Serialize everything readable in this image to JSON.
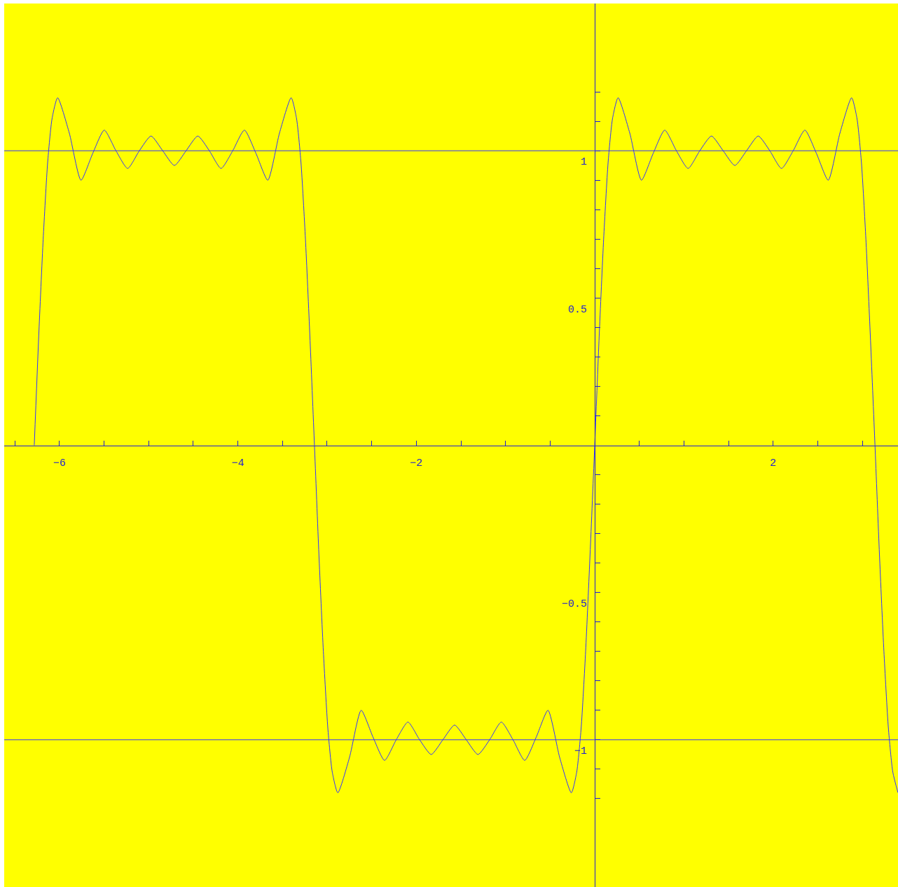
{
  "chart_data": {
    "type": "line",
    "xlim": [
      -6.62,
      3.4
    ],
    "ylim": [
      -1.5,
      1.5
    ],
    "xticks": [
      {
        "value": -6.5,
        "label": null
      },
      {
        "value": -6,
        "label": "−6"
      },
      {
        "value": -5.5,
        "label": null
      },
      {
        "value": -5,
        "label": null
      },
      {
        "value": -4.5,
        "label": null
      },
      {
        "value": -4,
        "label": "−4"
      },
      {
        "value": -3.5,
        "label": null
      },
      {
        "value": -3,
        "label": null
      },
      {
        "value": -2.5,
        "label": null
      },
      {
        "value": -2,
        "label": "−2"
      },
      {
        "value": -1.5,
        "label": null
      },
      {
        "value": -1,
        "label": null
      },
      {
        "value": -0.5,
        "label": null
      },
      {
        "value": 0.5,
        "label": null
      },
      {
        "value": 1,
        "label": null
      },
      {
        "value": 1.5,
        "label": null
      },
      {
        "value": 2,
        "label": "2"
      },
      {
        "value": 2.5,
        "label": null
      },
      {
        "value": 3,
        "label": null
      }
    ],
    "yticks": [
      {
        "value": -1.2,
        "label": null
      },
      {
        "value": -1.1,
        "label": null
      },
      {
        "value": -1,
        "label": "−1"
      },
      {
        "value": -0.9,
        "label": null
      },
      {
        "value": -0.8,
        "label": null
      },
      {
        "value": -0.7,
        "label": null
      },
      {
        "value": -0.6,
        "label": null
      },
      {
        "value": -0.5,
        "label": "−0.5"
      },
      {
        "value": -0.4,
        "label": null
      },
      {
        "value": -0.3,
        "label": null
      },
      {
        "value": -0.2,
        "label": null
      },
      {
        "value": -0.1,
        "label": null
      },
      {
        "value": 0.1,
        "label": null
      },
      {
        "value": 0.2,
        "label": null
      },
      {
        "value": 0.3,
        "label": null
      },
      {
        "value": 0.4,
        "label": null
      },
      {
        "value": 0.5,
        "label": "0.5"
      },
      {
        "value": 0.6,
        "label": null
      },
      {
        "value": 0.7,
        "label": null
      },
      {
        "value": 0.8,
        "label": null
      },
      {
        "value": 0.9,
        "label": null
      },
      {
        "value": 1,
        "label": "1"
      },
      {
        "value": 1.1,
        "label": null
      },
      {
        "value": 1.2,
        "label": null
      }
    ],
    "grid": false,
    "marker": "none",
    "line_style": "solid",
    "ref_lines": [
      {
        "axis": "y",
        "value": 1,
        "color": "#3333ff"
      },
      {
        "axis": "y",
        "value": -1,
        "color": "#3333ff"
      }
    ],
    "series": [
      {
        "color": "#3333ff",
        "x": [
          -6.283,
          -6.233,
          -6.183,
          -6.133,
          -6.083,
          -6.021,
          -5.89,
          -5.759,
          -5.629,
          -5.498,
          -5.367,
          -5.236,
          -5.105,
          -4.974,
          -4.843,
          -4.712,
          -4.581,
          -4.45,
          -4.32,
          -4.189,
          -4.058,
          -3.927,
          -3.796,
          -3.665,
          -3.534,
          -3.403,
          -3.343,
          -3.293,
          -3.243,
          -3.193,
          -3.142,
          -3.092,
          -3.042,
          -2.992,
          -2.942,
          -2.88,
          -2.749,
          -2.618,
          -2.487,
          -2.356,
          -2.225,
          -2.094,
          -1.963,
          -1.833,
          -1.702,
          -1.571,
          -1.44,
          -1.309,
          -1.178,
          -1.047,
          -0.916,
          -0.785,
          -0.654,
          -0.524,
          -0.393,
          -0.262,
          -0.202,
          -0.152,
          -0.102,
          -0.052,
          0,
          0.05,
          0.1,
          0.15,
          0.2,
          0.262,
          0.393,
          0.524,
          0.654,
          0.785,
          0.916,
          1.047,
          1.178,
          1.309,
          1.44,
          1.571,
          1.702,
          1.833,
          1.963,
          2.094,
          2.225,
          2.356,
          2.487,
          2.618,
          2.749,
          2.88,
          2.94,
          2.99,
          3.04,
          3.09,
          3.142,
          3.192,
          3.242,
          3.292,
          3.342,
          3.4
        ],
        "values": [
          0,
          0.37,
          0.7,
          0.96,
          1.11,
          1.18,
          1.06,
          0.9,
          0.99,
          1.07,
          1.0,
          0.94,
          1.0,
          1.05,
          1.0,
          0.95,
          1.0,
          1.05,
          1.0,
          0.94,
          1.0,
          1.07,
          0.99,
          0.9,
          1.06,
          1.18,
          1.11,
          0.96,
          0.7,
          0.37,
          0,
          -0.37,
          -0.7,
          -0.96,
          -1.11,
          -1.18,
          -1.06,
          -0.9,
          -0.99,
          -1.07,
          -1.0,
          -0.94,
          -1.0,
          -1.05,
          -1.0,
          -0.95,
          -1.0,
          -1.05,
          -1.0,
          -0.94,
          -1.0,
          -1.07,
          -0.99,
          -0.9,
          -1.06,
          -1.18,
          -1.11,
          -0.96,
          -0.7,
          -0.37,
          0,
          0.37,
          0.7,
          0.96,
          1.11,
          1.18,
          1.06,
          0.9,
          0.99,
          1.07,
          1.0,
          0.94,
          1.0,
          1.05,
          1.0,
          0.95,
          1.0,
          1.05,
          1.0,
          0.94,
          1.0,
          1.07,
          0.99,
          0.9,
          1.06,
          1.18,
          1.11,
          0.96,
          0.7,
          0.37,
          0,
          -0.37,
          -0.7,
          -0.96,
          -1.11,
          -1.18
        ]
      }
    ]
  }
}
